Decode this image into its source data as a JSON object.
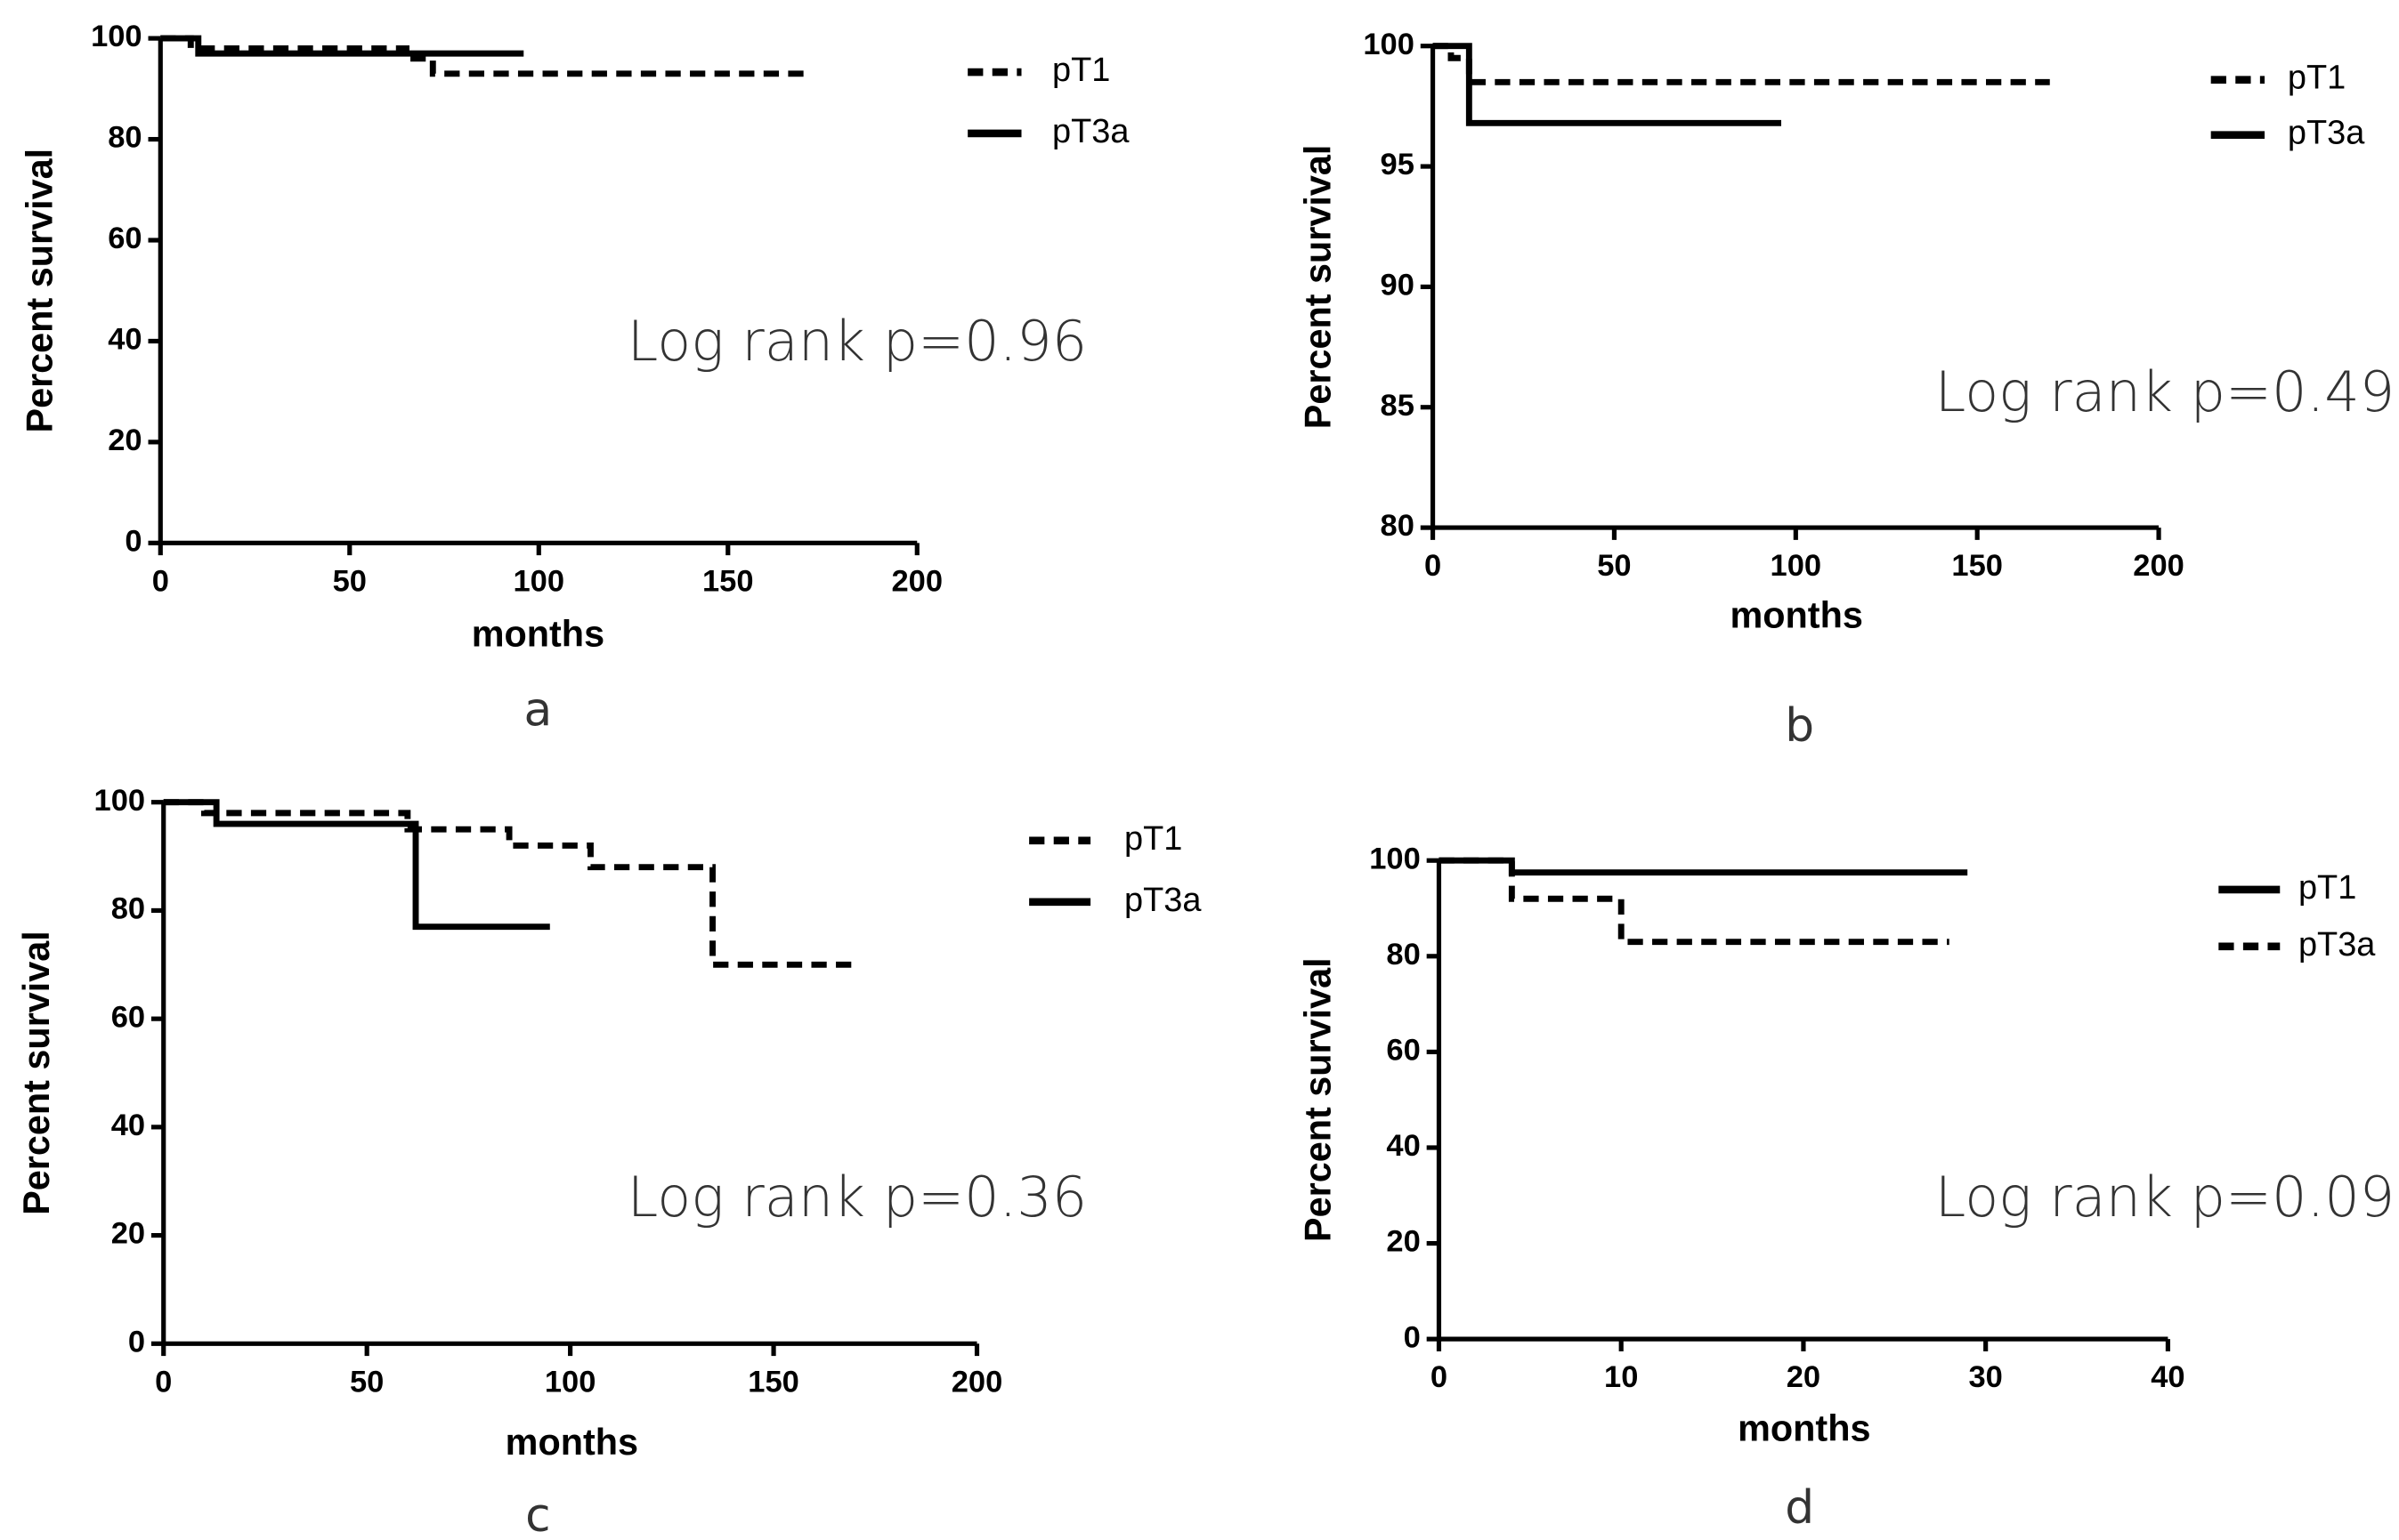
{
  "chart_data": [
    {
      "type": "step",
      "panel": "a",
      "annotation": "Log rank p=0.96",
      "x_label": "months",
      "y_label": "Percent survival",
      "xlim": [
        0,
        200
      ],
      "xticks": [
        0,
        50,
        100,
        150,
        200
      ],
      "ylim": [
        0,
        100
      ],
      "yticks": [
        0,
        20,
        40,
        60,
        80,
        100
      ],
      "series": [
        {
          "name": "pT1",
          "color": "#000000",
          "dashed": true,
          "x": [
            0,
            8,
            65,
            72,
            170
          ],
          "values": [
            100,
            98,
            96,
            93,
            93
          ]
        },
        {
          "name": "pT3a",
          "color": "#000000",
          "dashed": false,
          "x": [
            0,
            10,
            96
          ],
          "values": [
            100,
            97,
            97
          ]
        }
      ]
    },
    {
      "type": "step",
      "panel": "b",
      "annotation": "Log rank p=0.49",
      "x_label": "months",
      "y_label": "Percent survival",
      "xlim": [
        0,
        200
      ],
      "xticks": [
        0,
        50,
        100,
        150,
        200
      ],
      "ylim": [
        80,
        100
      ],
      "yticks": [
        80,
        85,
        90,
        95,
        100
      ],
      "series": [
        {
          "name": "pT1",
          "color": "#000000",
          "dashed": true,
          "x": [
            0,
            5,
            10,
            170
          ],
          "values": [
            100,
            99.5,
            98.5,
            98.5
          ]
        },
        {
          "name": "pT3a",
          "color": "#000000",
          "dashed": false,
          "x": [
            0,
            10,
            96
          ],
          "values": [
            100,
            96.8,
            96.8
          ]
        }
      ]
    },
    {
      "type": "step",
      "panel": "c",
      "annotation": "Log rank p=0.36",
      "x_label": "months",
      "y_label": "Percent survival",
      "xlim": [
        0,
        200
      ],
      "xticks": [
        0,
        50,
        100,
        150,
        200
      ],
      "ylim": [
        0,
        100
      ],
      "yticks": [
        0,
        20,
        40,
        60,
        80,
        100
      ],
      "series": [
        {
          "name": "pT1",
          "color": "#000000",
          "dashed": true,
          "x": [
            0,
            10,
            60,
            85,
            105,
            135,
            170
          ],
          "values": [
            100,
            98,
            95,
            92,
            88,
            70,
            70
          ]
        },
        {
          "name": "pT3a",
          "color": "#000000",
          "dashed": false,
          "x": [
            0,
            13,
            62,
            95
          ],
          "values": [
            100,
            96,
            77,
            77
          ]
        }
      ]
    },
    {
      "type": "step",
      "panel": "d",
      "annotation": "Log rank p=0.09",
      "x_label": "months",
      "y_label": "Percent survival",
      "xlim": [
        0,
        40
      ],
      "xticks": [
        0,
        10,
        20,
        30,
        40
      ],
      "ylim": [
        0,
        100
      ],
      "yticks": [
        0,
        20,
        40,
        60,
        80,
        100
      ],
      "series": [
        {
          "name": "pT1",
          "color": "#000000",
          "dashed": false,
          "x": [
            0,
            4,
            29
          ],
          "values": [
            100,
            97.5,
            97.5
          ]
        },
        {
          "name": "pT3a",
          "color": "#000000",
          "dashed": true,
          "x": [
            0,
            4,
            10,
            28
          ],
          "values": [
            100,
            92,
            83,
            83
          ]
        }
      ]
    }
  ]
}
